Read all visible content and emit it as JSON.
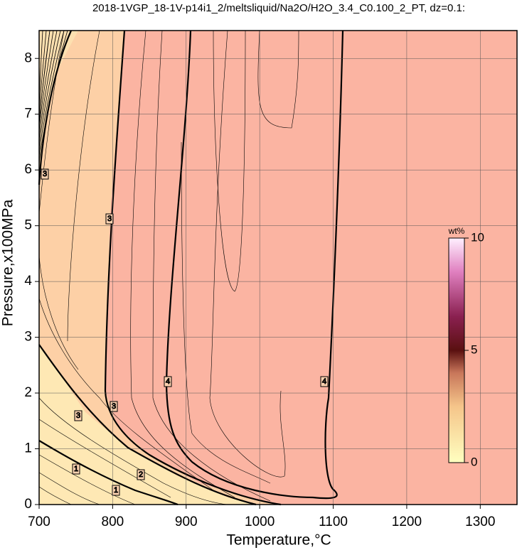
{
  "chart_data": {
    "type": "contour",
    "title": "2018-1VGP_18-1V-p14i1_2/meltsliquid/Na2O/H2O_3.4_C0.100_2_PT, dz=0.1:",
    "x_label": "Temperature,°C",
    "y_label": "Pressure,x100MPa",
    "xlim": [
      700,
      1350
    ],
    "ylim": [
      0,
      8.5
    ],
    "xticks": [
      700,
      800,
      900,
      1000,
      1100,
      1200,
      1300
    ],
    "yticks": [
      0,
      1,
      2,
      3,
      4,
      5,
      6,
      7,
      8
    ],
    "grid": true,
    "contour_levels": [
      1,
      2,
      3,
      4
    ],
    "colorbar": {
      "label": "wt%",
      "lim": [
        0,
        10
      ],
      "ticks": [
        0,
        5,
        10
      ]
    }
  }
}
